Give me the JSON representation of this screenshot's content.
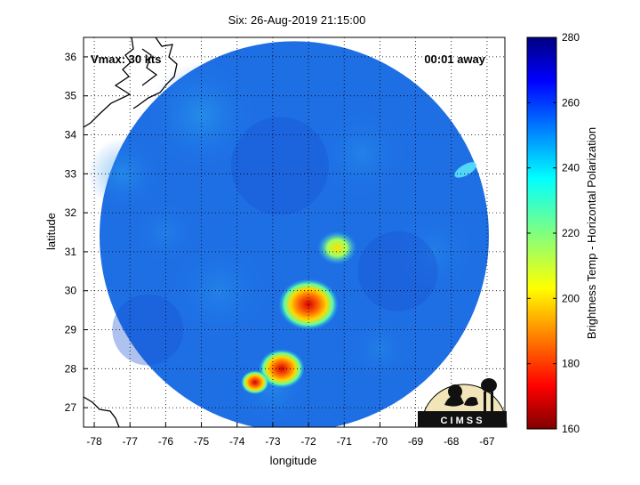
{
  "chart_data": {
    "type": "heatmap",
    "title": "Six: 26-Aug-2019 21:15:00",
    "xlabel": "longitude",
    "ylabel": "latitude",
    "xlim": [
      -78.3,
      -66.5
    ],
    "ylim": [
      26.5,
      36.5
    ],
    "x_ticks": [
      -78,
      -77,
      -76,
      -75,
      -74,
      -73,
      -72,
      -71,
      -70,
      -69,
      -68,
      -67
    ],
    "y_ticks": [
      27,
      28,
      29,
      30,
      31,
      32,
      33,
      34,
      35,
      36
    ],
    "grid": true,
    "annotations": {
      "vmax": "Vmax: 30 kts",
      "time_offset": "00:01 away"
    },
    "colorbar": {
      "label": "Brightness Temp - Horizontal Polarization",
      "range": [
        160,
        280
      ],
      "ticks": [
        160,
        180,
        200,
        220,
        240,
        260,
        280
      ],
      "colormap": "jet"
    },
    "swath": {
      "center_lon": -72.4,
      "center_lat": 31.4,
      "radius_deg_lat": 5.0
    },
    "features": [
      {
        "lon": -72.0,
        "lat": 29.65,
        "value": 180
      },
      {
        "lon": -72.75,
        "lat": 28.0,
        "value": 178
      },
      {
        "lon": -73.5,
        "lat": 27.65,
        "value": 190
      },
      {
        "lon": -71.2,
        "lat": 31.1,
        "value": 215
      }
    ],
    "logo_text": "C I M S S"
  }
}
